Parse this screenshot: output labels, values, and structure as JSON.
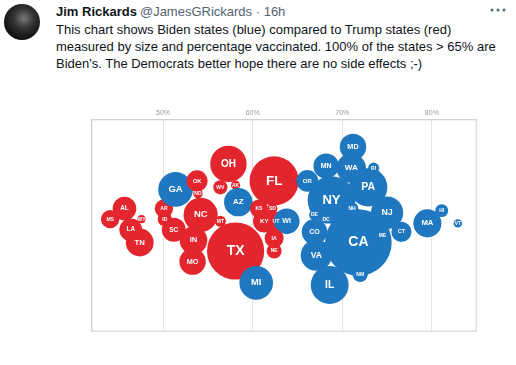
{
  "tweet": {
    "name": "Jim Rickards",
    "handle": "@JamesGRickards",
    "separator": "·",
    "time": "16h",
    "text_lines": [
      "This chart shows Biden states (blue) compared to Trump states (red)",
      "measured by size and percentage vaccinated. 100% of the states > 65% are",
      "Biden's. The Democrats better hope there are no side effects ;-)"
    ]
  },
  "chart_data": {
    "type": "bubble",
    "categories": [
      "MS",
      "AL",
      "WY",
      "LA",
      "TN",
      "AR",
      "ID",
      "SC",
      "GA",
      "OK",
      "ND",
      "NC",
      "IN",
      "MO",
      "OH",
      "WV",
      "AK",
      "AZ",
      "MT",
      "TX",
      "FL",
      "KS",
      "SD",
      "KY",
      "UT",
      "WI",
      "IA",
      "NE",
      "MI",
      "MD",
      "MN",
      "WA",
      "RI",
      "OR",
      "NY",
      "PA",
      "NH",
      "DE",
      "DC",
      "CO",
      "NJ",
      "CT",
      "ME",
      "VA",
      "CA",
      "IL",
      "NM",
      "MA",
      "HI",
      "VT"
    ],
    "x": [
      44.1,
      45.7,
      47.6,
      46.4,
      47.4,
      50.1,
      50.2,
      51.2,
      51.4,
      53.8,
      53.9,
      54.2,
      53.4,
      53.3,
      57.3,
      56.4,
      58.1,
      58.4,
      56.4,
      58.1,
      62.4,
      60.7,
      62.2,
      61.3,
      62.6,
      63.8,
      62.4,
      62.4,
      60.4,
      71.2,
      68.2,
      71.0,
      73.5,
      66.1,
      68.8,
      72.9,
      71.1,
      66.9,
      68.2,
      66.9,
      75.0,
      76.6,
      74.5,
      67.1,
      71.8,
      68.6,
      72.0,
      79.5,
      81.1,
      82.9
    ],
    "y": [
      53,
      58,
      53,
      48,
      42,
      58,
      53,
      48,
      67,
      71,
      65,
      55,
      43,
      33,
      79,
      68,
      69,
      61,
      52,
      38,
      71,
      58,
      58,
      52,
      52,
      52,
      44,
      38,
      23,
      87,
      78,
      77,
      77,
      71,
      62,
      68,
      58,
      55,
      53,
      47,
      56,
      47,
      45,
      36,
      42,
      22,
      27,
      51,
      57,
      51
    ],
    "sizes": [
      3.0,
      5.0,
      0.58,
      4.6,
      6.9,
      3.0,
      1.8,
      5.1,
      10.7,
      4.0,
      0.78,
      10.4,
      6.8,
      6.2,
      11.8,
      1.8,
      0.73,
      7.2,
      1.1,
      29.1,
      21.5,
      2.9,
      0.89,
      4.5,
      3.3,
      5.9,
      3.2,
      2.0,
      10.1,
      6.2,
      5.7,
      7.7,
      1.1,
      4.2,
      20.2,
      13.0,
      1.4,
      1.0,
      0.69,
      5.8,
      9.3,
      3.6,
      1.4,
      8.6,
      39.5,
      12.8,
      2.1,
      7.0,
      1.5,
      0.64
    ],
    "colors": [
      "#e3262d",
      "#e3262d",
      "#e3262d",
      "#e3262d",
      "#e3262d",
      "#e3262d",
      "#e3262d",
      "#e3262d",
      "#1f77c0",
      "#e3262d",
      "#e3262d",
      "#e3262d",
      "#e3262d",
      "#e3262d",
      "#e3262d",
      "#e3262d",
      "#e3262d",
      "#1f77c0",
      "#e3262d",
      "#e3262d",
      "#e3262d",
      "#e3262d",
      "#e3262d",
      "#e3262d",
      "#e3262d",
      "#1f77c0",
      "#e3262d",
      "#e3262d",
      "#1f77c0",
      "#1f77c0",
      "#1f77c0",
      "#1f77c0",
      "#1f77c0",
      "#1f77c0",
      "#1f77c0",
      "#1f77c0",
      "#1f77c0",
      "#1f77c0",
      "#1f77c0",
      "#1f77c0",
      "#1f77c0",
      "#1f77c0",
      "#1f77c0",
      "#1f77c0",
      "#1f77c0",
      "#1f77c0",
      "#1f77c0",
      "#1f77c0",
      "#1f77c0",
      "#1f77c0"
    ],
    "xlim": [
      42,
      85
    ],
    "xticks": [
      {
        "value": 50,
        "label": "50%"
      },
      {
        "value": 60,
        "label": "60%"
      },
      {
        "value": 70,
        "label": "70%"
      },
      {
        "value": 80,
        "label": "80%"
      }
    ],
    "ylim": [
      0,
      100
    ],
    "grid": true,
    "tick_labels": "x"
  }
}
